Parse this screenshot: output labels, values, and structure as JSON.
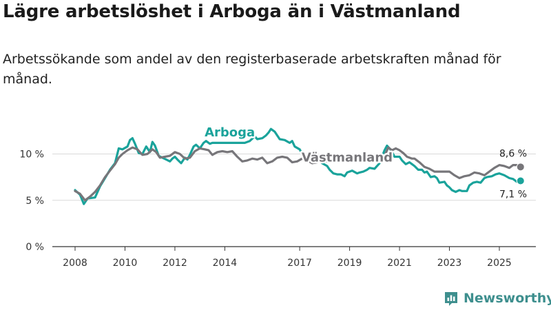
{
  "title": "Lägre arbetslöshet i Arboga än i Västmanland",
  "subtitle": "Arbetssökande som andel av den registerbaserade arbetskraften månad för månad.",
  "brand": {
    "name": "Newsworthy",
    "icon": "newsworthy-logo-icon",
    "color": "#3e8f8e"
  },
  "chart_data": {
    "type": "line",
    "xlim": [
      2008,
      2026.5
    ],
    "ylim": [
      0,
      13
    ],
    "y_ticks": [
      0,
      5,
      10
    ],
    "y_tick_labels": [
      "0 %",
      "5 %",
      "10 %"
    ],
    "x_ticks": [
      2008,
      2010,
      2012,
      2014,
      2017,
      2019,
      2021,
      2023,
      2025
    ],
    "x_tick_labels": [
      "2008",
      "2010",
      "2012",
      "2014",
      "2017",
      "2019",
      "2021",
      "2023",
      "2025"
    ],
    "series": [
      {
        "name": "Arboga",
        "color": "#1aa39b",
        "end_label": "7,1 %",
        "points": [
          [
            2008.0,
            6.1
          ],
          [
            2008.2,
            5.6
          ],
          [
            2008.35,
            4.6
          ],
          [
            2008.5,
            5.2
          ],
          [
            2008.8,
            5.3
          ],
          [
            2009.0,
            6.5
          ],
          [
            2009.2,
            7.4
          ],
          [
            2009.4,
            8.3
          ],
          [
            2009.6,
            9.0
          ],
          [
            2009.75,
            10.6
          ],
          [
            2009.9,
            10.5
          ],
          [
            2010.1,
            10.8
          ],
          [
            2010.2,
            11.5
          ],
          [
            2010.3,
            11.7
          ],
          [
            2010.4,
            11.1
          ],
          [
            2010.55,
            10.1
          ],
          [
            2010.7,
            10.0
          ],
          [
            2010.85,
            10.8
          ],
          [
            2011.0,
            10.2
          ],
          [
            2011.1,
            11.3
          ],
          [
            2011.2,
            10.9
          ],
          [
            2011.35,
            9.8
          ],
          [
            2011.5,
            9.6
          ],
          [
            2011.65,
            9.4
          ],
          [
            2011.8,
            9.2
          ],
          [
            2011.9,
            9.5
          ],
          [
            2012.0,
            9.7
          ],
          [
            2012.1,
            9.4
          ],
          [
            2012.25,
            9.0
          ],
          [
            2012.4,
            9.6
          ],
          [
            2012.5,
            9.4
          ],
          [
            2012.6,
            9.9
          ],
          [
            2012.75,
            10.8
          ],
          [
            2012.85,
            11.0
          ],
          [
            2013.0,
            10.6
          ],
          [
            2013.15,
            11.2
          ],
          [
            2013.25,
            11.4
          ],
          [
            2013.4,
            11.1
          ],
          [
            2013.5,
            11.2
          ],
          [
            2013.55,
            11.2
          ],
          [
            2014.8,
            11.2
          ],
          [
            2015.0,
            11.4
          ],
          [
            2015.2,
            11.9
          ],
          [
            2015.3,
            11.6
          ],
          [
            2015.5,
            11.7
          ],
          [
            2015.65,
            12.0
          ],
          [
            2015.75,
            12.3
          ],
          [
            2015.85,
            12.7
          ],
          [
            2016.0,
            12.4
          ],
          [
            2016.1,
            12.0
          ],
          [
            2016.2,
            11.6
          ],
          [
            2016.4,
            11.5
          ],
          [
            2016.6,
            11.2
          ],
          [
            2016.7,
            11.4
          ],
          [
            2016.8,
            10.8
          ],
          [
            2017.0,
            10.5
          ],
          [
            2017.1,
            10.0
          ],
          [
            2017.2,
            9.7
          ],
          [
            2017.35,
            9.8
          ],
          [
            2017.5,
            9.4
          ],
          [
            2017.8,
            9.3
          ],
          [
            2017.9,
            9.0
          ],
          [
            2018.1,
            8.7
          ],
          [
            2018.2,
            8.3
          ],
          [
            2018.35,
            7.9
          ],
          [
            2018.5,
            7.8
          ],
          [
            2018.65,
            7.8
          ],
          [
            2018.8,
            7.6
          ],
          [
            2018.9,
            8.0
          ],
          [
            2019.1,
            8.2
          ],
          [
            2019.3,
            7.9
          ],
          [
            2019.4,
            8.0
          ],
          [
            2019.55,
            8.1
          ],
          [
            2019.7,
            8.3
          ],
          [
            2019.8,
            8.5
          ],
          [
            2020.0,
            8.4
          ],
          [
            2020.2,
            9.0
          ],
          [
            2020.3,
            9.7
          ],
          [
            2020.4,
            10.4
          ],
          [
            2020.5,
            10.9
          ],
          [
            2020.6,
            10.6
          ],
          [
            2020.7,
            10.2
          ],
          [
            2020.8,
            9.7
          ],
          [
            2021.0,
            9.7
          ],
          [
            2021.1,
            9.3
          ],
          [
            2021.25,
            8.9
          ],
          [
            2021.4,
            9.1
          ],
          [
            2021.5,
            8.9
          ],
          [
            2021.6,
            8.7
          ],
          [
            2021.75,
            8.3
          ],
          [
            2021.9,
            8.3
          ],
          [
            2022.0,
            8.0
          ],
          [
            2022.1,
            8.1
          ],
          [
            2022.25,
            7.5
          ],
          [
            2022.4,
            7.6
          ],
          [
            2022.5,
            7.4
          ],
          [
            2022.6,
            6.9
          ],
          [
            2022.8,
            7.0
          ],
          [
            2022.9,
            6.6
          ],
          [
            2023.0,
            6.4
          ],
          [
            2023.1,
            6.1
          ],
          [
            2023.25,
            5.9
          ],
          [
            2023.4,
            6.1
          ],
          [
            2023.5,
            6.0
          ],
          [
            2023.7,
            6.0
          ],
          [
            2023.8,
            6.6
          ],
          [
            2023.95,
            6.9
          ],
          [
            2024.1,
            7.0
          ],
          [
            2024.25,
            6.9
          ],
          [
            2024.4,
            7.4
          ],
          [
            2024.5,
            7.5
          ],
          [
            2024.7,
            7.6
          ],
          [
            2024.85,
            7.8
          ],
          [
            2025.0,
            7.9
          ],
          [
            2025.2,
            7.7
          ],
          [
            2025.4,
            7.4
          ],
          [
            2025.55,
            7.3
          ],
          [
            2025.7,
            7.0
          ],
          [
            2025.85,
            7.1
          ]
        ]
      },
      {
        "name": "Västmanland",
        "color": "#77767a",
        "end_label": "8,6 %",
        "points": [
          [
            2008.0,
            6.0
          ],
          [
            2008.2,
            5.7
          ],
          [
            2008.4,
            5.0
          ],
          [
            2008.6,
            5.4
          ],
          [
            2008.8,
            5.9
          ],
          [
            2009.0,
            6.6
          ],
          [
            2009.2,
            7.5
          ],
          [
            2009.4,
            8.2
          ],
          [
            2009.6,
            8.9
          ],
          [
            2009.75,
            9.6
          ],
          [
            2009.9,
            10.0
          ],
          [
            2010.1,
            10.4
          ],
          [
            2010.3,
            10.7
          ],
          [
            2010.5,
            10.5
          ],
          [
            2010.7,
            9.9
          ],
          [
            2010.9,
            10.0
          ],
          [
            2011.1,
            10.5
          ],
          [
            2011.25,
            10.2
          ],
          [
            2011.4,
            9.6
          ],
          [
            2011.6,
            9.7
          ],
          [
            2011.8,
            9.8
          ],
          [
            2012.0,
            10.2
          ],
          [
            2012.2,
            10.0
          ],
          [
            2012.4,
            9.5
          ],
          [
            2012.6,
            9.6
          ],
          [
            2012.8,
            10.3
          ],
          [
            2013.0,
            10.6
          ],
          [
            2013.2,
            10.5
          ],
          [
            2013.35,
            10.4
          ],
          [
            2013.5,
            9.9
          ],
          [
            2013.7,
            10.2
          ],
          [
            2013.9,
            10.3
          ],
          [
            2014.1,
            10.2
          ],
          [
            2014.3,
            10.3
          ],
          [
            2014.5,
            9.7
          ],
          [
            2014.7,
            9.2
          ],
          [
            2014.9,
            9.3
          ],
          [
            2015.1,
            9.5
          ],
          [
            2015.3,
            9.4
          ],
          [
            2015.5,
            9.6
          ],
          [
            2015.7,
            9.0
          ],
          [
            2015.9,
            9.2
          ],
          [
            2016.1,
            9.6
          ],
          [
            2016.3,
            9.7
          ],
          [
            2016.5,
            9.6
          ],
          [
            2016.7,
            9.1
          ],
          [
            2016.9,
            9.2
          ],
          [
            2017.1,
            9.5
          ],
          [
            2017.3,
            9.3
          ],
          [
            2017.5,
            9.0
          ],
          [
            2017.7,
            9.1
          ],
          [
            2017.8,
            9.2
          ],
          [
            2020.3,
            9.2
          ],
          [
            2020.45,
            10.1
          ],
          [
            2020.55,
            10.7
          ],
          [
            2020.7,
            10.4
          ],
          [
            2020.85,
            10.6
          ],
          [
            2021.0,
            10.4
          ],
          [
            2021.15,
            10.1
          ],
          [
            2021.3,
            9.7
          ],
          [
            2021.5,
            9.5
          ],
          [
            2021.6,
            9.5
          ],
          [
            2021.8,
            9.1
          ],
          [
            2022.0,
            8.6
          ],
          [
            2022.2,
            8.4
          ],
          [
            2022.4,
            8.1
          ],
          [
            2022.6,
            8.1
          ],
          [
            2022.8,
            8.1
          ],
          [
            2023.0,
            8.1
          ],
          [
            2023.2,
            7.7
          ],
          [
            2023.4,
            7.4
          ],
          [
            2023.6,
            7.6
          ],
          [
            2023.8,
            7.7
          ],
          [
            2024.0,
            8.0
          ],
          [
            2024.2,
            7.9
          ],
          [
            2024.4,
            7.7
          ],
          [
            2024.6,
            8.1
          ],
          [
            2024.8,
            8.5
          ],
          [
            2025.0,
            8.8
          ],
          [
            2025.2,
            8.7
          ],
          [
            2025.4,
            8.5
          ],
          [
            2025.55,
            8.8
          ],
          [
            2025.7,
            8.8
          ],
          [
            2025.85,
            8.6
          ]
        ]
      }
    ],
    "annotations": [
      {
        "text": "Arboga",
        "series": "Arboga",
        "x": 2014.2,
        "y": 11.9
      },
      {
        "text": "Västmanland",
        "series": "Västmanland",
        "x": 2018.9,
        "y": 9.2
      }
    ]
  }
}
